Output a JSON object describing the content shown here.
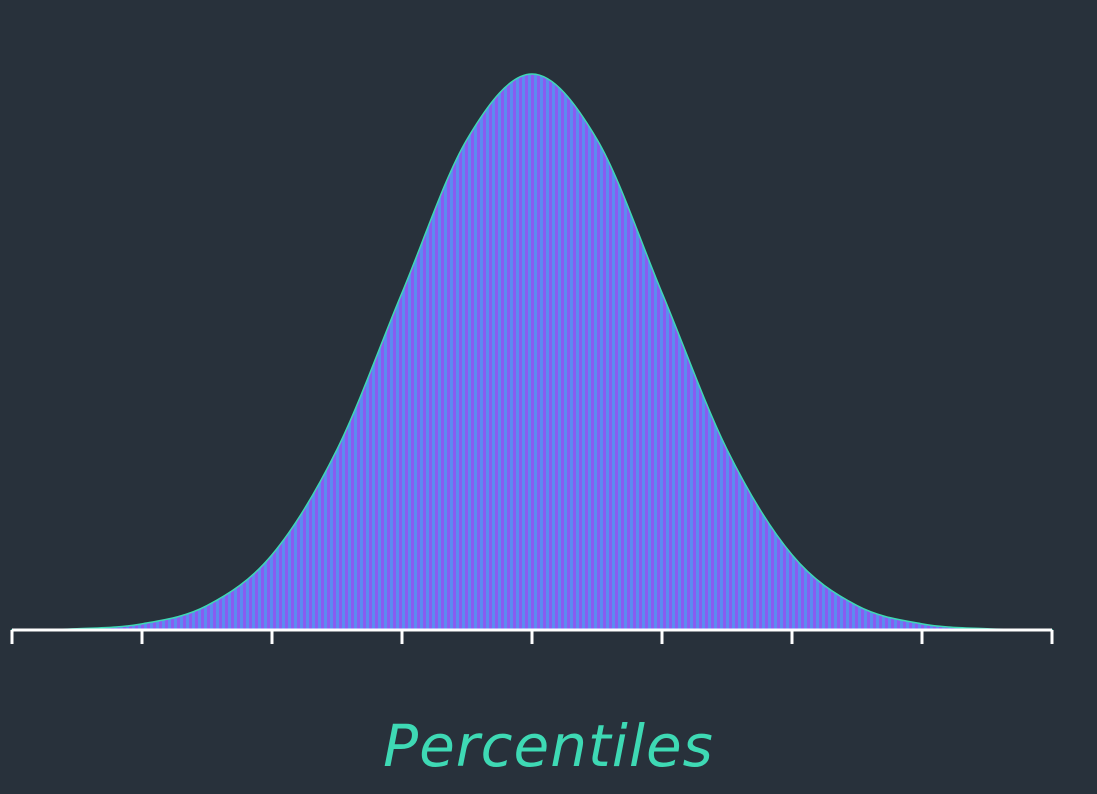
{
  "chart_data": {
    "type": "area",
    "title": "",
    "xlabel": "Percentiles",
    "ylabel": "",
    "xlim": [
      -4,
      4
    ],
    "ylim": [
      0,
      1
    ],
    "x_ticks": [
      -4,
      -3,
      -2,
      -1,
      0,
      1,
      2,
      3,
      4
    ],
    "grid": false,
    "legend": "none",
    "series": [
      {
        "x": [
          -4.0,
          -3.5,
          -3.0,
          -2.5,
          -2.0,
          -1.5,
          -1.0,
          -0.5,
          0.0,
          0.5,
          1.0,
          1.5,
          2.0,
          2.5,
          3.0,
          3.5,
          4.0
        ],
        "values": [
          0.0003,
          0.0022,
          0.0111,
          0.0439,
          0.1353,
          0.3247,
          0.6065,
          0.8825,
          1.0,
          0.8825,
          0.6065,
          0.3247,
          0.1353,
          0.0439,
          0.0111,
          0.0022,
          0.0003
        ]
      }
    ],
    "colors": {
      "background": "#28313b",
      "stripe_a": "#5b8cf0",
      "stripe_b": "#8a5cf0",
      "edge": "#3ed9b4",
      "axis": "#ffffff",
      "label": "#3ed9b4"
    }
  }
}
